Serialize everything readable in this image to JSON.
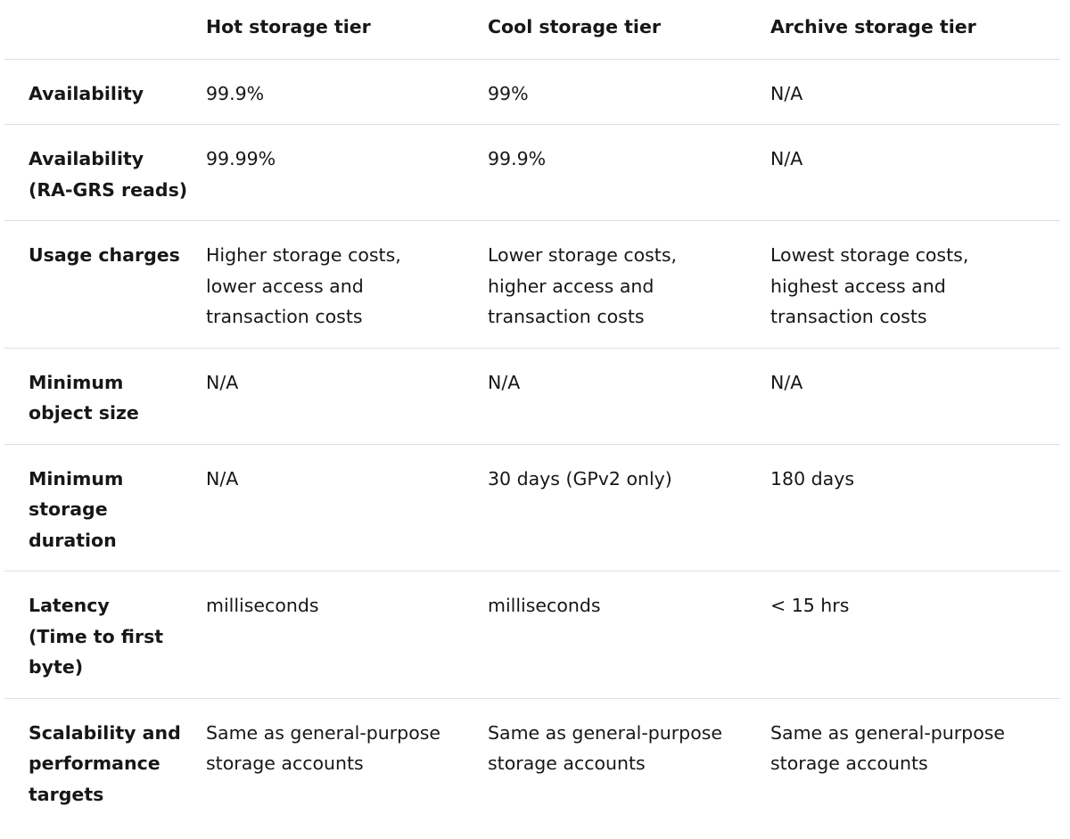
{
  "table": {
    "headers": [
      "",
      "Hot storage tier",
      "Cool storage tier",
      "Archive storage tier"
    ],
    "rows": [
      {
        "label": [
          "Availability"
        ],
        "hot": [
          "99.9%"
        ],
        "cool": [
          "99%"
        ],
        "archive": [
          "N/A"
        ]
      },
      {
        "label": [
          "Availability",
          "(RA-GRS reads)"
        ],
        "hot": [
          "99.99%"
        ],
        "cool": [
          "99.9%"
        ],
        "archive": [
          "N/A"
        ]
      },
      {
        "label": [
          "Usage charges"
        ],
        "hot": [
          "Higher storage costs,",
          "lower access and",
          "transaction costs"
        ],
        "cool": [
          "Lower storage costs,",
          "higher access and",
          "transaction costs"
        ],
        "archive": [
          "Lowest storage costs,",
          "highest access and",
          "transaction costs"
        ]
      },
      {
        "label": [
          "Minimum",
          "object size"
        ],
        "hot": [
          "N/A"
        ],
        "cool": [
          "N/A"
        ],
        "archive": [
          "N/A"
        ]
      },
      {
        "label": [
          "Minimum",
          "storage",
          "duration"
        ],
        "hot": [
          "N/A"
        ],
        "cool": [
          "30 days (GPv2 only)"
        ],
        "archive": [
          "180 days"
        ]
      },
      {
        "label": [
          "Latency",
          "(Time to first",
          "byte)"
        ],
        "hot": [
          "milliseconds"
        ],
        "cool": [
          "milliseconds"
        ],
        "archive": [
          "< 15 hrs"
        ]
      },
      {
        "label": [
          "Scalability and",
          "performance",
          "targets"
        ],
        "hot": [
          "Same as general-purpose",
          "storage accounts"
        ],
        "cool": [
          "Same as general-purpose",
          "storage accounts"
        ],
        "archive": [
          "Same as general-purpose",
          "storage accounts"
        ]
      }
    ]
  }
}
